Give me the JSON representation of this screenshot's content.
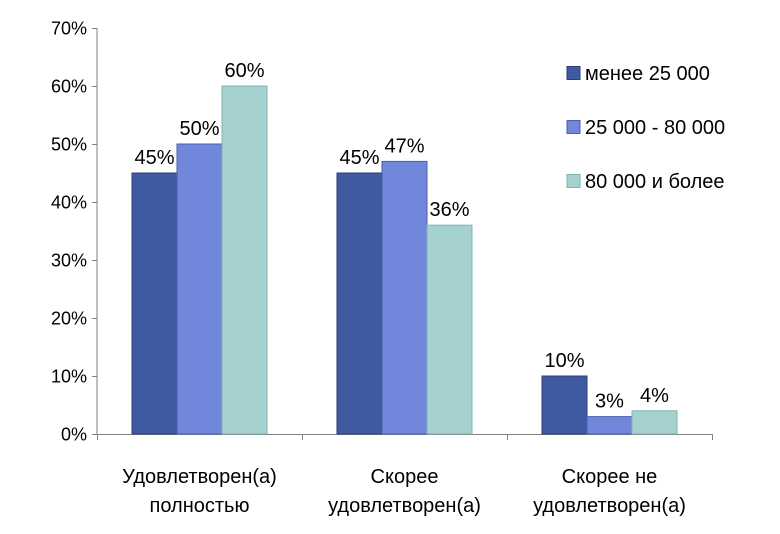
{
  "chart_data": {
    "type": "bar",
    "categories": [
      [
        "Удовлетворен(а)",
        "полностью"
      ],
      [
        "Скорее",
        "удовлетворен(а)"
      ],
      [
        "Скорее не",
        "удовлетворен(а)"
      ]
    ],
    "series": [
      {
        "name": "менее 25 000",
        "values": [
          45,
          45,
          10
        ],
        "labels": [
          "45%",
          "45%",
          "10%"
        ],
        "color": "#3f5aa0",
        "edge": "#2c3f73"
      },
      {
        "name": "25 000 - 80 000",
        "values": [
          50,
          47,
          3
        ],
        "labels": [
          "50%",
          "47%",
          "3%"
        ],
        "color": "#7187db",
        "edge": "#4a5fae"
      },
      {
        "name": "80 000 и более",
        "values": [
          60,
          36,
          4
        ],
        "labels": [
          "60%",
          "36%",
          "4%"
        ],
        "color": "#a5d2d1",
        "edge": "#7fb1b0"
      }
    ],
    "yticks": [
      "0%",
      "10%",
      "20%",
      "30%",
      "40%",
      "50%",
      "60%",
      "70%"
    ],
    "ylim": [
      0,
      70
    ],
    "title": "",
    "xlabel": "",
    "ylabel": "",
    "grid": false,
    "legend": "right"
  }
}
